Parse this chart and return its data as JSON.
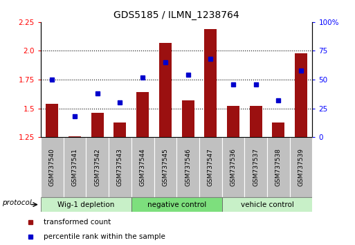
{
  "title": "GDS5185 / ILMN_1238764",
  "categories": [
    "GSM737540",
    "GSM737541",
    "GSM737542",
    "GSM737543",
    "GSM737544",
    "GSM737545",
    "GSM737546",
    "GSM737547",
    "GSM737536",
    "GSM737537",
    "GSM737538",
    "GSM737539"
  ],
  "red_values": [
    1.54,
    1.26,
    1.46,
    1.38,
    1.64,
    2.07,
    1.57,
    2.19,
    1.52,
    1.52,
    1.38,
    1.98
  ],
  "blue_values": [
    50,
    18,
    38,
    30,
    52,
    65,
    54,
    68,
    46,
    46,
    32,
    58
  ],
  "ylim_left": [
    1.25,
    2.25
  ],
  "ylim_right": [
    0,
    100
  ],
  "yticks_left": [
    1.25,
    1.5,
    1.75,
    2.0,
    2.25
  ],
  "yticks_right": [
    0,
    25,
    50,
    75,
    100
  ],
  "ytick_labels_right": [
    "0",
    "25",
    "50",
    "75",
    "100%"
  ],
  "groups": [
    {
      "label": "Wig-1 depletion",
      "start": 0,
      "end": 3,
      "color": "#c8f0c8"
    },
    {
      "label": "negative control",
      "start": 4,
      "end": 7,
      "color": "#7ddf7d"
    },
    {
      "label": "vehicle control",
      "start": 8,
      "end": 11,
      "color": "#c8f0c8"
    }
  ],
  "bar_color": "#9b1010",
  "dot_color": "#0000cc",
  "bar_bottom": 1.25,
  "legend_red_label": "transformed count",
  "legend_blue_label": "percentile rank within the sample",
  "protocol_label": "protocol",
  "sample_bg_color": "#c0c0c0",
  "group_border_color": "#808080"
}
